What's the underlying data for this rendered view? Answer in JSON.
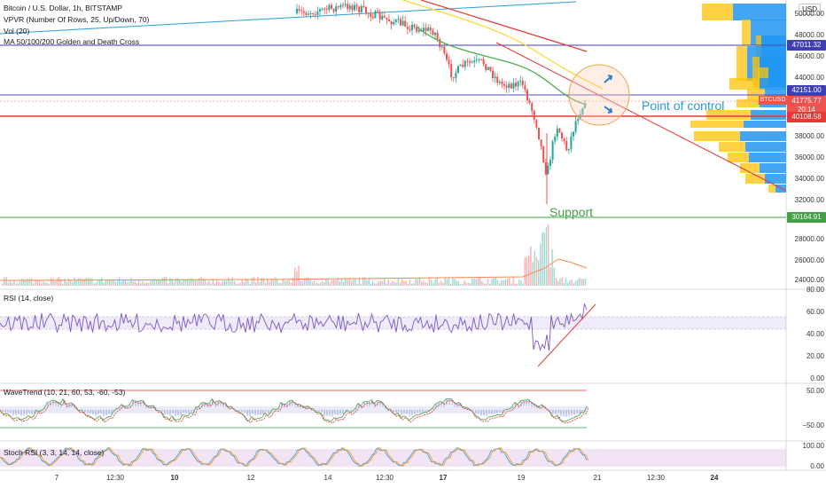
{
  "header": {
    "title": "Bitcoin / U.S. Dollar, 1h, BITSTAMP",
    "vpvr": "VPVR (Number Of Rows, 25, Up/Down, 70)",
    "vol": "Vol (20)",
    "ma": "MA 50/100/200 Golden and Death Cross",
    "currency": "USD"
  },
  "price_axis": [
    "50000.00",
    "48000.00",
    "46000.00",
    "44000.00",
    "40000.00",
    "38000.00",
    "36000.00",
    "34000.00",
    "32000.00",
    "28000.00",
    "26000.00",
    "24000.00"
  ],
  "price_tags": {
    "resistance": "47011.32",
    "level1": "42151.00",
    "current": "41775.77",
    "countdown": "20:14",
    "poc": "40108.58",
    "support": "30164.91",
    "symbol": "BTCUSD"
  },
  "annotations": {
    "poc": "Point of control",
    "support": "Support"
  },
  "rsi": {
    "title": "RSI (14, close)",
    "axis": [
      "80.00",
      "60.00",
      "40.00",
      "20.00",
      "0.00"
    ]
  },
  "wavetrend": {
    "title": "WaveTrend (10, 21, 60, 53, -60, -53)",
    "axis": [
      "50.00",
      "−50.00"
    ]
  },
  "stoch": {
    "title": "Stoch RSI (3, 3, 14, 14, close)",
    "axis": [
      "100.00",
      "0.00"
    ]
  },
  "time_axis": [
    "7",
    "12:30",
    "10",
    "12",
    "14",
    "12:30",
    "17",
    "19",
    "21",
    "12:30",
    "24"
  ],
  "colors": {
    "up": "#26a69a",
    "down": "#ef5350",
    "poc_line": "#e53935",
    "support_line": "#43a047",
    "resistance_line": "#3f3fb0",
    "ma50": "#4caf50",
    "ma100": "#fdd835",
    "ma200": "#e53935",
    "vpvr_up": "#2196f3",
    "vpvr_down": "#ffc107",
    "rsi": "#7e57c2",
    "annotation_text": "#2a9bd6"
  }
}
